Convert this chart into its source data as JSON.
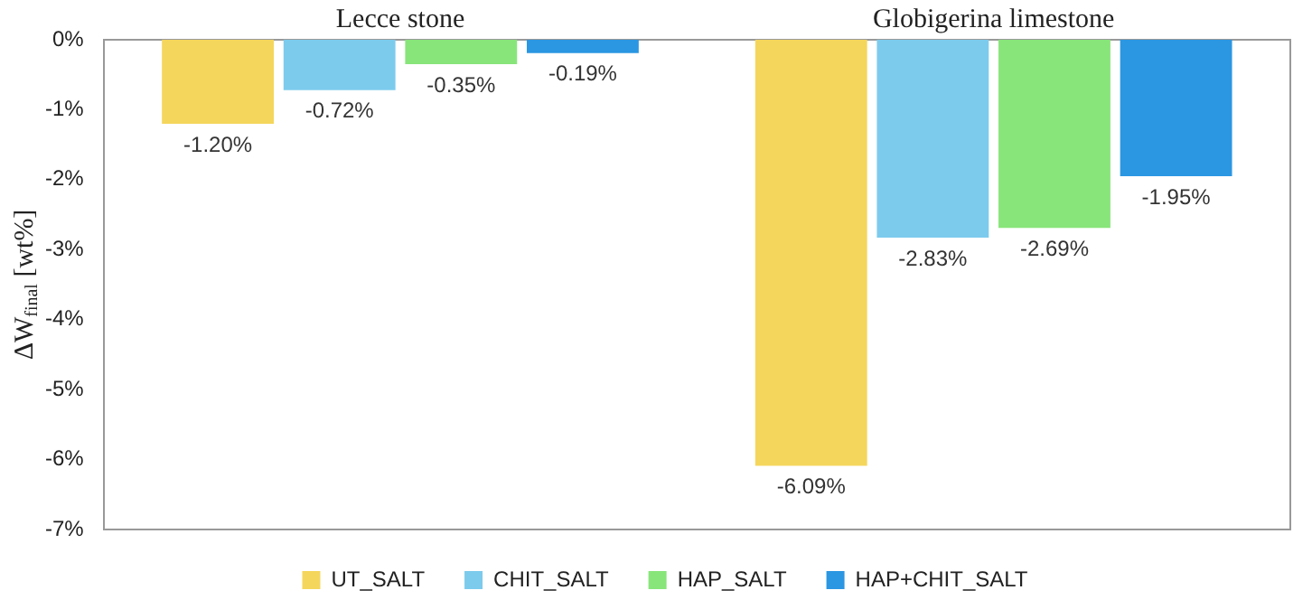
{
  "chart_data": {
    "type": "bar",
    "ylabel": "ΔW$_{final}$ [wt%]",
    "categories": [
      "Lecce stone",
      "Globigerina limestone"
    ],
    "series": [
      {
        "name": "UT_SALT",
        "color": "#f5d65c",
        "values": [
          -1.2,
          -6.09
        ],
        "value_labels": [
          "-1.20%",
          "-6.09%"
        ]
      },
      {
        "name": "CHIT_SALT",
        "color": "#7ccbed",
        "values": [
          -0.72,
          -2.83
        ],
        "value_labels": [
          "-0.72%",
          "-2.83%"
        ]
      },
      {
        "name": "HAP_SALT",
        "color": "#88e57a",
        "values": [
          -0.35,
          -2.69
        ],
        "value_labels": [
          "-0.35%",
          "-2.69%"
        ]
      },
      {
        "name": "HAP+CHIT_SALT",
        "color": "#2b96e2",
        "values": [
          -0.19,
          -1.95
        ],
        "value_labels": [
          "-0.19%",
          "-1.95%"
        ]
      }
    ],
    "ylim": [
      -7,
      0
    ],
    "yticks": [
      {
        "value": 0,
        "label": "0%"
      },
      {
        "value": -1,
        "label": "-1%"
      },
      {
        "value": -2,
        "label": "-2%"
      },
      {
        "value": -3,
        "label": "-3%"
      },
      {
        "value": -4,
        "label": "-4%"
      },
      {
        "value": -5,
        "label": "-5%"
      },
      {
        "value": -6,
        "label": "-6%"
      },
      {
        "value": -7,
        "label": "-7%"
      }
    ],
    "grid": false,
    "legend": "bottom"
  }
}
